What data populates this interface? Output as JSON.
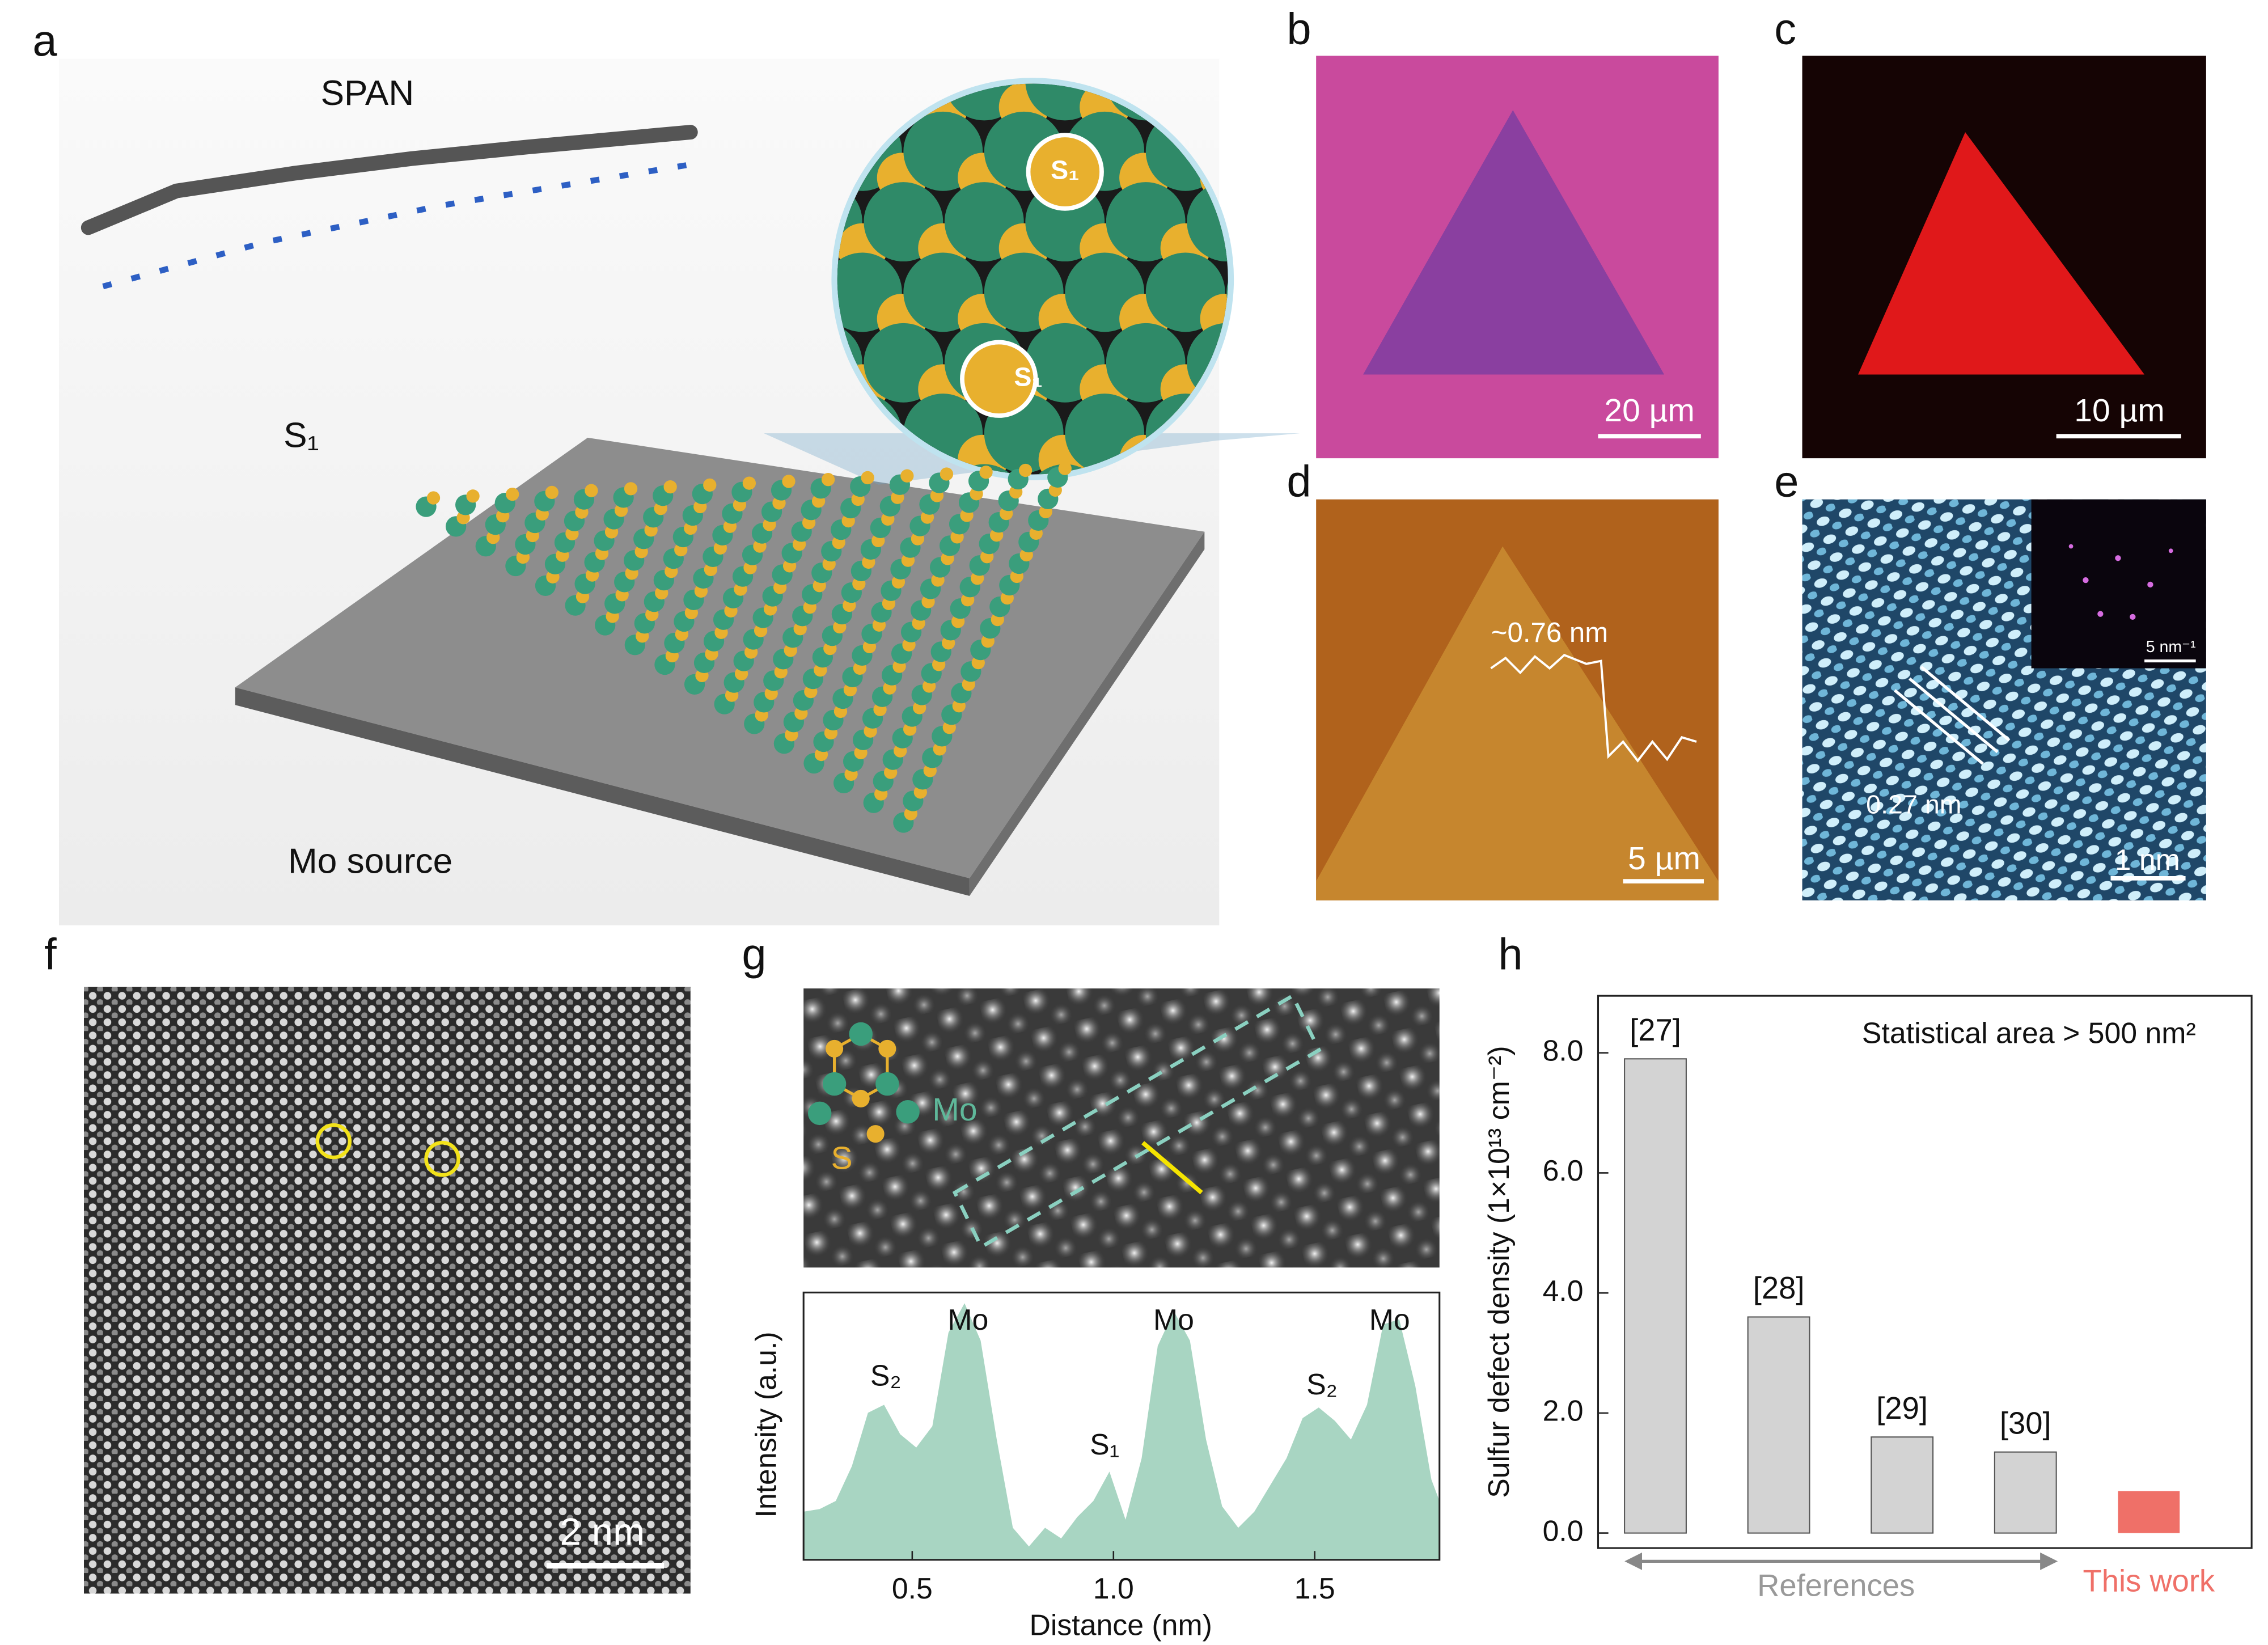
{
  "panels": {
    "a": {
      "label": "a",
      "title": "SPAN",
      "s1": "S₁",
      "source": "Mo source",
      "zoom_s1": "S₁"
    },
    "b": {
      "label": "b",
      "scale_bar": "20 µm"
    },
    "c": {
      "label": "c",
      "scale_bar": "10 µm"
    },
    "d": {
      "label": "d",
      "height": "~0.76 nm",
      "scale_bar": "5 µm"
    },
    "e": {
      "label": "e",
      "spacing": "0.27 nm",
      "scale_bar": "1 nm",
      "inset_scale_bar": "5 nm⁻¹"
    },
    "f": {
      "label": "f",
      "scale_bar": "2 nm"
    },
    "g": {
      "label": "g",
      "mo": "Mo",
      "s": "S"
    },
    "h": {
      "label": "h"
    }
  },
  "chart_data": [
    {
      "type": "area",
      "xlabel": "Distance (nm)",
      "ylabel": "Intensity (a.u.)",
      "color": "#a8d5c2",
      "x": [
        0.23,
        0.27,
        0.31,
        0.35,
        0.39,
        0.43,
        0.47,
        0.51,
        0.55,
        0.59,
        0.63,
        0.67,
        0.71,
        0.75,
        0.79,
        0.83,
        0.87,
        0.91,
        0.95,
        0.99,
        1.03,
        1.07,
        1.11,
        1.15,
        1.19,
        1.23,
        1.27,
        1.31,
        1.35,
        1.39,
        1.43,
        1.47,
        1.51,
        1.55,
        1.59,
        1.63,
        1.67,
        1.71,
        1.75,
        1.79,
        1.81
      ],
      "values": [
        0.18,
        0.19,
        0.22,
        0.35,
        0.55,
        0.58,
        0.47,
        0.42,
        0.5,
        0.85,
        0.96,
        0.82,
        0.45,
        0.12,
        0.05,
        0.12,
        0.08,
        0.16,
        0.22,
        0.33,
        0.15,
        0.38,
        0.8,
        0.93,
        0.82,
        0.45,
        0.2,
        0.12,
        0.18,
        0.28,
        0.38,
        0.53,
        0.57,
        0.52,
        0.45,
        0.58,
        0.88,
        0.9,
        0.65,
        0.3,
        0.22
      ],
      "xlim": [
        0.23,
        1.81
      ],
      "ylim": [
        0,
        1
      ],
      "xticks": [
        0.5,
        {
          "value": 1,
          "label": "1.0"
        },
        1.5
      ],
      "annotations": [
        "S₂",
        "Mo",
        "S₁",
        "Mo",
        "S₂",
        "Mo"
      ]
    },
    {
      "type": "bar",
      "ylabel": "Sulfur defect density (1×10¹³ cm⁻²)",
      "annotation": "Statistical area > 500 nm²",
      "group_label": "References",
      "categories": [
        "[27]",
        "[28]",
        "[29]",
        "[30]",
        "This work"
      ],
      "values": [
        7.9,
        3.6,
        1.6,
        1.35,
        0.7
      ],
      "colors": [
        "#d3d3d3",
        "#d3d3d3",
        "#d3d3d3",
        "#d3d3d3",
        "#ef7068"
      ],
      "ylim": [
        -0.25,
        8.95
      ],
      "yticks": [
        {
          "value": 0,
          "label": "0.0"
        },
        {
          "value": 2,
          "label": "2.0"
        },
        {
          "value": 4,
          "label": "4.0"
        },
        {
          "value": 6,
          "label": "6.0"
        },
        {
          "value": 8,
          "label": "8.0"
        }
      ]
    }
  ]
}
